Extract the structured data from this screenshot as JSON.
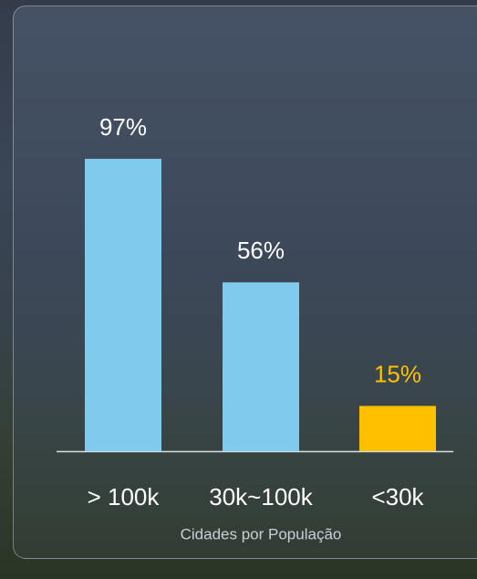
{
  "chart_data": {
    "type": "bar",
    "categories": [
      "> 100k",
      "30k~100k",
      "<30k"
    ],
    "values": [
      97,
      56,
      15
    ],
    "value_labels": [
      "97%",
      "56%",
      "15%"
    ],
    "colors": [
      "#7fcbee",
      "#7fcbee",
      "#ffc000"
    ],
    "label_colors": [
      "#ffffff",
      "#ffffff",
      "#ffc000"
    ],
    "x_label": "Cidades por População"
  }
}
